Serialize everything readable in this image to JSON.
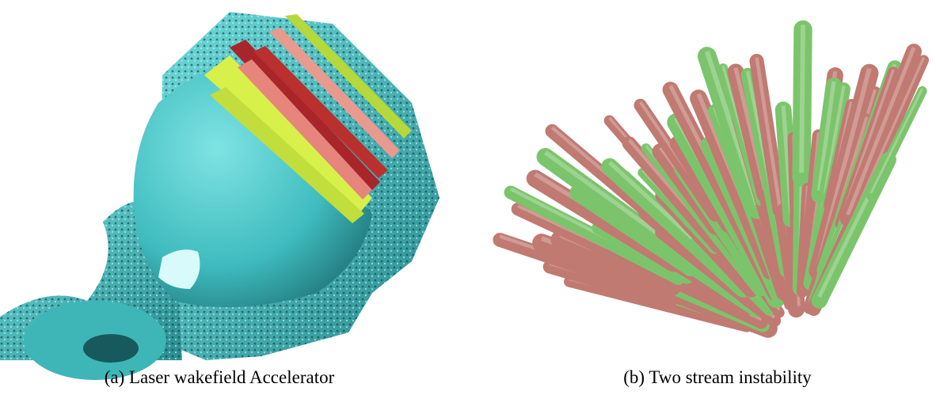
{
  "figure": {
    "panels": [
      {
        "caption": "(a) Laser wakefield Accelerator"
      },
      {
        "caption": "(b) Two stream instability"
      }
    ]
  }
}
